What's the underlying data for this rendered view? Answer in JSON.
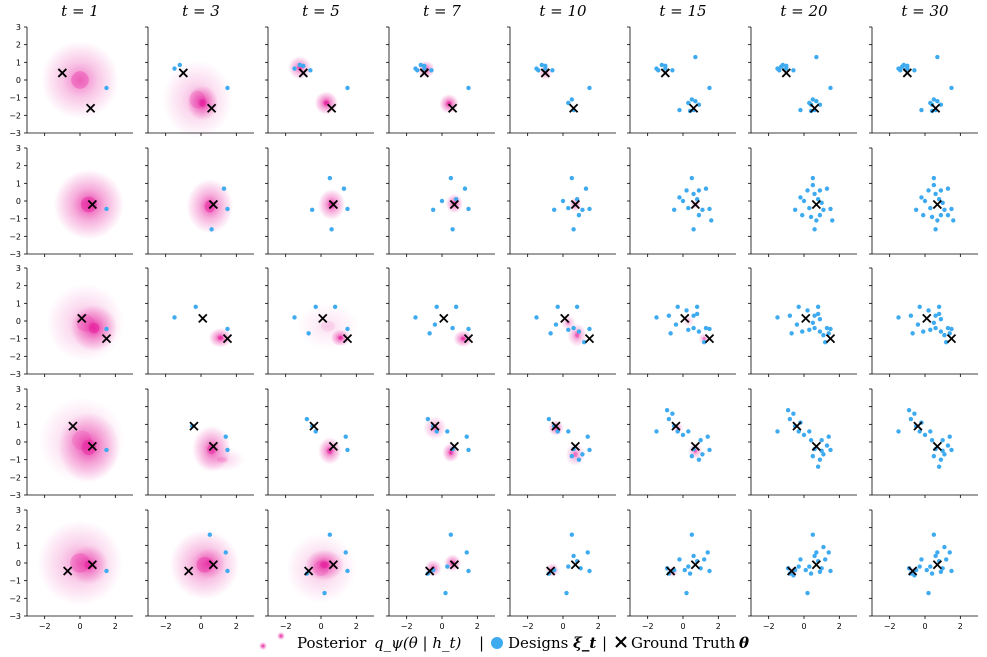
{
  "chart_data": {
    "type": "scatter",
    "grid": false,
    "xlim": [
      -3,
      3
    ],
    "ylim": [
      -3,
      3
    ],
    "x_ticks": [
      "−2",
      "0",
      "2"
    ],
    "y_ticks": [
      "3",
      "2",
      "1",
      "0",
      "−1",
      "−2",
      "−3"
    ],
    "timesteps": [
      1,
      3,
      5,
      7,
      10,
      15,
      20,
      30
    ],
    "column_titles": [
      "t = 1",
      "t = 3",
      "t = 5",
      "t = 7",
      "t = 10",
      "t = 15",
      "t = 20",
      "t = 30"
    ],
    "colors": {
      "posterior": "#e6199b",
      "designs": "#3eaaf0",
      "ground_truth": "#000000"
    },
    "legend": {
      "posterior_label": "Posterior",
      "posterior_expr": "q_ψ(θ | h_t)",
      "separator": "|",
      "designs_label": "Designs",
      "designs_symbol": "ξ_t",
      "gt_label": "Ground Truth",
      "gt_symbol": "θ"
    },
    "rows": [
      {
        "ground_truth": [
          [
            -1.0,
            0.4
          ],
          [
            0.6,
            -1.6
          ]
        ],
        "designs": [
          [
            1.5,
            -0.45
          ],
          [
            -1.5,
            0.65
          ],
          [
            -1.2,
            0.85
          ],
          [
            -1.0,
            0.8
          ],
          [
            -0.6,
            0.55
          ],
          [
            -1.4,
            0.55
          ],
          [
            -1.0,
            0.65
          ],
          [
            0.3,
            -1.3
          ],
          [
            0.5,
            -1.1
          ],
          [
            0.6,
            -1.7
          ],
          [
            0.9,
            -1.4
          ],
          [
            0.7,
            -1.2
          ],
          [
            -0.2,
            -1.7
          ],
          [
            0.4,
            -1.75
          ],
          [
            0.7,
            1.3
          ],
          [
            -1.1,
            0.6
          ],
          [
            0.4,
            -1.4
          ],
          [
            -1.3,
            0.75
          ]
        ],
        "posterior": [
          [
            [
              0.0,
              0.0,
              1.0,
              1.0,
              0.55
            ]
          ],
          [
            [
              0.1,
              -1.3,
              0.4,
              0.45,
              0.85
            ],
            [
              -0.2,
              -1.1,
              0.9,
              1.0,
              0.35
            ]
          ],
          [
            [
              0.3,
              -1.3,
              0.3,
              0.3,
              0.9
            ],
            [
              -1.2,
              0.7,
              0.3,
              0.3,
              0.7
            ]
          ],
          [
            [
              0.4,
              -1.35,
              0.25,
              0.25,
              0.9
            ],
            [
              -0.9,
              0.6,
              0.22,
              0.22,
              0.8
            ]
          ],
          [
            [
              -1.0,
              0.4,
              0.18,
              0.18,
              0.5
            ]
          ],
          [],
          [],
          []
        ]
      },
      {
        "ground_truth": [
          [
            0.7,
            -0.2
          ]
        ],
        "designs": [
          [
            1.5,
            -0.45
          ],
          [
            1.3,
            0.7
          ],
          [
            0.6,
            -1.6
          ],
          [
            0.5,
            1.3
          ],
          [
            -0.5,
            -0.5
          ],
          [
            0.0,
            0.0
          ],
          [
            0.8,
            0.1
          ],
          [
            1.1,
            -0.5
          ],
          [
            0.3,
            -0.4
          ],
          [
            0.9,
            -0.8
          ],
          [
            0.6,
            0.4
          ],
          [
            0.2,
            0.6
          ],
          [
            0.9,
            0.6
          ],
          [
            1.6,
            -1.1
          ],
          [
            -0.2,
            0.2
          ],
          [
            0.5,
            0.9
          ],
          [
            1.0,
            -0.1
          ],
          [
            0.4,
            -0.9
          ],
          [
            0.7,
            -1.1
          ],
          [
            -0.1,
            -0.8
          ],
          [
            1.3,
            -0.8
          ]
        ],
        "posterior": [
          [
            [
              0.5,
              -0.2,
              0.9,
              0.9,
              0.8
            ]
          ],
          [
            [
              0.5,
              -0.3,
              0.6,
              0.7,
              0.75
            ]
          ],
          [
            [
              0.6,
              -0.2,
              0.35,
              0.4,
              0.8
            ]
          ],
          [
            [
              0.7,
              -0.15,
              0.22,
              0.25,
              0.8
            ]
          ],
          [
            [
              0.7,
              -0.2,
              0.15,
              0.18,
              0.75
            ]
          ],
          [
            [
              0.7,
              -0.2,
              0.12,
              0.12,
              0.5
            ]
          ],
          [],
          []
        ]
      },
      {
        "ground_truth": [
          [
            0.1,
            0.15
          ],
          [
            1.5,
            -1.0
          ]
        ],
        "designs": [
          [
            1.5,
            -0.45
          ],
          [
            -0.3,
            0.8
          ],
          [
            -1.5,
            0.2
          ],
          [
            0.8,
            0.8
          ],
          [
            -0.7,
            -0.7
          ],
          [
            0.6,
            -0.4
          ],
          [
            -0.4,
            -0.2
          ],
          [
            1.2,
            -1.2
          ],
          [
            0.3,
            -0.5
          ],
          [
            0.9,
            -0.6
          ],
          [
            0.2,
            0.6
          ],
          [
            0.6,
            0.3
          ],
          [
            1.3,
            -0.4
          ],
          [
            0.8,
            0.4
          ],
          [
            -0.8,
            0.3
          ],
          [
            1.1,
            -0.8
          ],
          [
            0.5,
            -0.1
          ],
          [
            -0.1,
            -0.6
          ],
          [
            0.9,
            0.1
          ],
          [
            1.4,
            -0.7
          ]
        ],
        "posterior": [
          [
            [
              0.8,
              -0.4,
              0.6,
              0.6,
              0.85
            ],
            [
              0.3,
              -0.1,
              1.0,
              1.0,
              0.35
            ]
          ],
          [
            [
              1.1,
              -0.95,
              0.3,
              0.25,
              0.85
            ]
          ],
          [
            [
              1.1,
              -0.95,
              0.25,
              0.22,
              0.85
            ],
            [
              0.4,
              -0.3,
              0.8,
              0.6,
              0.15
            ]
          ],
          [
            [
              1.2,
              -1.0,
              0.25,
              0.22,
              0.8
            ]
          ],
          [
            [
              0.8,
              -0.8,
              0.25,
              0.3,
              0.6
            ],
            [
              0.3,
              -0.1,
              0.2,
              0.2,
              0.4
            ]
          ],
          [
            [
              1.2,
              -1.0,
              0.15,
              0.15,
              0.5
            ],
            [
              0.3,
              0.0,
              0.15,
              0.15,
              0.3
            ]
          ],
          [],
          []
        ]
      },
      {
        "ground_truth": [
          [
            -0.4,
            0.9
          ],
          [
            0.7,
            -0.25
          ]
        ],
        "designs": [
          [
            1.5,
            -0.45
          ],
          [
            1.4,
            0.3
          ],
          [
            -0.5,
            0.9
          ],
          [
            -0.8,
            1.3
          ],
          [
            -0.3,
            0.6
          ],
          [
            0.3,
            0.6
          ],
          [
            0.6,
            -0.4
          ],
          [
            1.1,
            -0.7
          ],
          [
            0.9,
            -1.0
          ],
          [
            0.5,
            -0.8
          ],
          [
            -1.5,
            0.6
          ],
          [
            -0.6,
            1.6
          ],
          [
            -0.9,
            1.8
          ],
          [
            0.0,
            0.4
          ],
          [
            1.0,
            0.1
          ],
          [
            1.3,
            -0.2
          ],
          [
            0.8,
            -1.4
          ],
          [
            0.4,
            0.1
          ],
          [
            -0.2,
            1.1
          ],
          [
            1.0,
            -0.5
          ]
        ],
        "posterior": [
          [
            [
              0.5,
              -0.3,
              0.8,
              0.9,
              0.75
            ],
            [
              0.1,
              0.1,
              1.1,
              1.1,
              0.3
            ]
          ],
          [
            [
              0.6,
              -0.4,
              0.5,
              0.6,
              0.75
            ],
            [
              1.2,
              -1.0,
              0.6,
              0.3,
              0.25
            ]
          ],
          [
            [
              0.5,
              -0.5,
              0.3,
              0.35,
              0.8
            ]
          ],
          [
            [
              0.5,
              -0.6,
              0.22,
              0.25,
              0.8
            ],
            [
              -0.4,
              0.8,
              0.3,
              0.3,
              0.5
            ]
          ],
          [
            [
              -0.4,
              0.8,
              0.2,
              0.2,
              0.8
            ],
            [
              0.7,
              -0.7,
              0.25,
              0.3,
              0.5
            ]
          ],
          [
            [
              0.7,
              -0.5,
              0.18,
              0.2,
              0.6
            ],
            [
              -0.3,
              0.8,
              0.15,
              0.15,
              0.4
            ]
          ],
          [],
          []
        ]
      },
      {
        "ground_truth": [
          [
            -0.7,
            -0.45
          ],
          [
            0.7,
            -0.1
          ]
        ],
        "designs": [
          [
            1.5,
            -0.45
          ],
          [
            1.4,
            0.6
          ],
          [
            0.5,
            1.6
          ],
          [
            0.2,
            -1.7
          ],
          [
            -0.8,
            -0.6
          ],
          [
            -0.5,
            -0.4
          ],
          [
            0.3,
            -0.2
          ],
          [
            0.8,
            0.1
          ],
          [
            0.6,
            0.4
          ],
          [
            1.0,
            -0.3
          ],
          [
            -0.2,
            0.2
          ],
          [
            0.4,
            -0.6
          ],
          [
            1.2,
            0.2
          ],
          [
            -0.9,
            -0.3
          ],
          [
            0.1,
            -0.4
          ],
          [
            0.9,
            -0.5
          ],
          [
            -0.6,
            -0.7
          ],
          [
            0.7,
            0.6
          ],
          [
            1.1,
            0.9
          ],
          [
            -0.3,
            -0.2
          ]
        ],
        "posterior": [
          [
            [
              0.0,
              0.0,
              1.1,
              1.1,
              0.45
            ],
            [
              0.5,
              -0.1,
              0.5,
              0.5,
              0.7
            ]
          ],
          [
            [
              0.2,
              -0.1,
              0.9,
              0.9,
              0.6
            ],
            [
              0.5,
              0.0,
              0.4,
              0.4,
              0.5
            ]
          ],
          [
            [
              0.2,
              -0.1,
              0.5,
              0.4,
              0.85
            ],
            [
              0.0,
              -0.3,
              0.9,
              0.9,
              0.3
            ]
          ],
          [
            [
              0.6,
              0.0,
              0.22,
              0.22,
              0.8
            ],
            [
              -0.5,
              -0.3,
              0.22,
              0.22,
              0.7
            ]
          ],
          [
            [
              -0.6,
              -0.4,
              0.18,
              0.18,
              0.65
            ]
          ],
          [
            [
              -0.6,
              -0.5,
              0.14,
              0.14,
              0.55
            ]
          ],
          [
            [
              -0.6,
              -0.45,
              0.12,
              0.12,
              0.4
            ]
          ],
          [
            [
              -0.7,
              -0.45,
              0.1,
              0.1,
              0.4
            ]
          ]
        ]
      }
    ]
  }
}
